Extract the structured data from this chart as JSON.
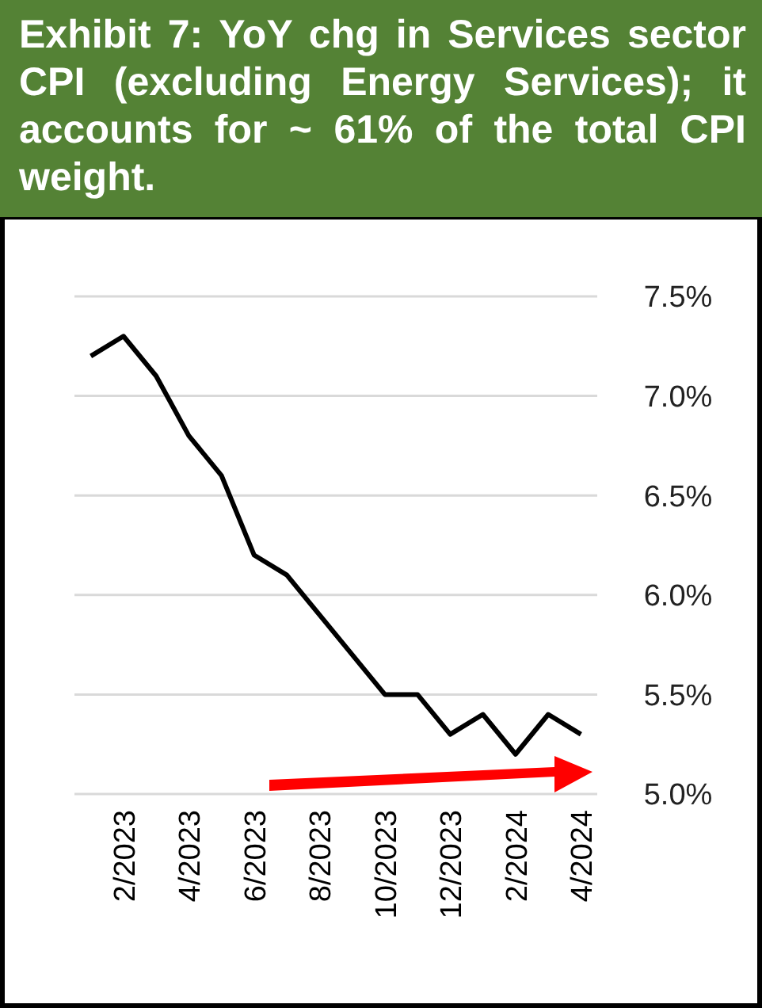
{
  "chart_data": {
    "type": "line",
    "title": "Exhibit 7: YoY chg in Services sector CPI (excluding Energy Services); it accounts for ~ 61% of the total CPI weight.",
    "categories": [
      null,
      "2/2023",
      null,
      "4/2023",
      null,
      "6/2023",
      null,
      "8/2023",
      null,
      "10/2023",
      null,
      "12/2023",
      null,
      "2/2024",
      null,
      "4/2024"
    ],
    "series": [
      {
        "color": "#000000",
        "values": [
          7.2,
          7.3,
          7.1,
          6.8,
          6.6,
          6.2,
          6.1,
          5.9,
          5.7,
          5.5,
          5.5,
          5.3,
          5.4,
          5.2,
          5.4,
          5.3
        ]
      }
    ],
    "ylim": [
      5.0,
      7.5
    ],
    "yticks": [
      {
        "value": 5.0,
        "label": "5.0%"
      },
      {
        "value": 5.5,
        "label": "5.5%"
      },
      {
        "value": 6.0,
        "label": "6.0%"
      },
      {
        "value": 6.5,
        "label": "6.5%"
      },
      {
        "value": 7.0,
        "label": "7.0%"
      },
      {
        "value": 7.5,
        "label": "7.5%"
      }
    ],
    "grid": "y",
    "marker": "none",
    "line_style": "solid"
  }
}
